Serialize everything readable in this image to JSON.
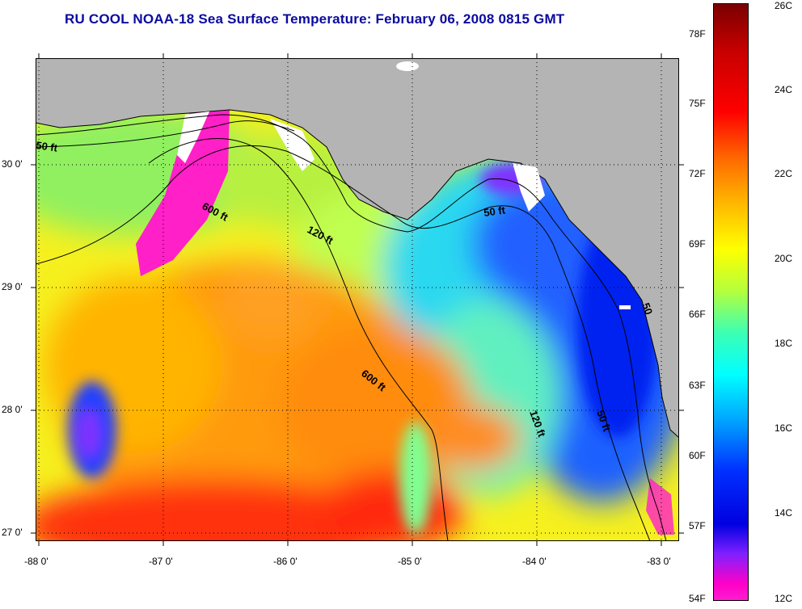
{
  "title": "RU COOL  NOAA-18  Sea Surface Temperature:  February 06, 2008 0815 GMT",
  "map": {
    "lat_ticks": [
      {
        "value": 30,
        "label": "30 0'"
      },
      {
        "value": 29,
        "label": "29 0'"
      },
      {
        "value": 28,
        "label": "28 0'"
      },
      {
        "value": 27,
        "label": "27 0'"
      }
    ],
    "lon_ticks": [
      {
        "value": -88,
        "label": "-88 0'"
      },
      {
        "value": -87,
        "label": "-87 0'"
      },
      {
        "value": -86,
        "label": "-86 0'"
      },
      {
        "value": -85,
        "label": "-85 0'"
      },
      {
        "value": -84,
        "label": "-84 0'"
      },
      {
        "value": -83,
        "label": "-83 0'"
      }
    ],
    "contour_labels": [
      "50 ft",
      "600 ft",
      "120 ft",
      "50 ft",
      "600 ft",
      "120 ft",
      "50 ft",
      "50"
    ],
    "colors": {
      "land": "#b4b4b4",
      "clouds": "#ffffff",
      "contour": "#000000"
    }
  },
  "colorbar": {
    "fahrenheit_labels": [
      "78F",
      "75F",
      "72F",
      "69F",
      "66F",
      "63F",
      "60F",
      "57F",
      "54F"
    ],
    "celsius_labels": [
      "26C",
      "24C",
      "22C",
      "20C",
      "18C",
      "16C",
      "14C",
      "12C"
    ],
    "colors_top_to_bottom": [
      "#7a0000",
      "#c80000",
      "#ff0000",
      "#ff6a00",
      "#ffb400",
      "#ffff00",
      "#b4ff3c",
      "#3cffb4",
      "#00ffff",
      "#00a0ff",
      "#0030ff",
      "#0000e0",
      "#8020ff",
      "#ff00c8"
    ]
  }
}
